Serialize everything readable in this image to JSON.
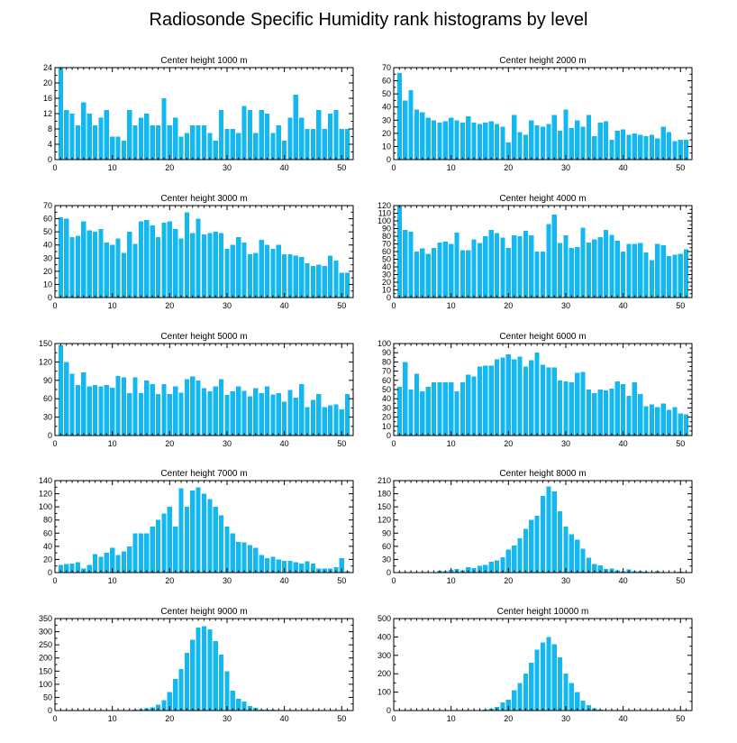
{
  "page": {
    "title": "Radiosonde Specific Humidity rank histograms by level"
  },
  "colors": {
    "bar": "#12b8ef",
    "background": "#ffffff",
    "axis": "#000000"
  },
  "chart_data": [
    {
      "type": "bar",
      "title": "Center height 1000 m",
      "xlim": [
        0,
        52
      ],
      "ylim": [
        0,
        24
      ],
      "xticks": [
        0,
        10,
        20,
        30,
        40,
        50
      ],
      "yticks": [
        0,
        4,
        8,
        12,
        16,
        20,
        24
      ],
      "x": [
        1,
        2,
        3,
        4,
        5,
        6,
        7,
        8,
        9,
        10,
        11,
        12,
        13,
        14,
        15,
        16,
        17,
        18,
        19,
        20,
        21,
        22,
        23,
        24,
        25,
        26,
        27,
        28,
        29,
        30,
        31,
        32,
        33,
        34,
        35,
        36,
        37,
        38,
        39,
        40,
        41,
        42,
        43,
        44,
        45,
        46,
        47,
        48,
        49,
        50,
        51
      ],
      "values": [
        24,
        13,
        12,
        9,
        15,
        12,
        9,
        11,
        13,
        6,
        6,
        5,
        13,
        9,
        11,
        12,
        9,
        9,
        16,
        9,
        11,
        6,
        7,
        9,
        9,
        9,
        7,
        5,
        13,
        8,
        8,
        7,
        14,
        13,
        7,
        13,
        12,
        7,
        9,
        5,
        11,
        17,
        11,
        8,
        8,
        13,
        8,
        12,
        13,
        8,
        8
      ]
    },
    {
      "type": "bar",
      "title": "Center height 2000 m",
      "xlim": [
        0,
        52
      ],
      "ylim": [
        0,
        70
      ],
      "xticks": [
        0,
        10,
        20,
        30,
        40,
        50
      ],
      "yticks": [
        0,
        10,
        20,
        30,
        40,
        50,
        60,
        70
      ],
      "x": [
        1,
        2,
        3,
        4,
        5,
        6,
        7,
        8,
        9,
        10,
        11,
        12,
        13,
        14,
        15,
        16,
        17,
        18,
        19,
        20,
        21,
        22,
        23,
        24,
        25,
        26,
        27,
        28,
        29,
        30,
        31,
        32,
        33,
        34,
        35,
        36,
        37,
        38,
        39,
        40,
        41,
        42,
        43,
        44,
        45,
        46,
        47,
        48,
        49,
        50,
        51
      ],
      "values": [
        66,
        45,
        53,
        38,
        36,
        32,
        30,
        28,
        29,
        32,
        30,
        28,
        33,
        28,
        27,
        28,
        29,
        27,
        25,
        13,
        34,
        21,
        19,
        30,
        26,
        25,
        27,
        34,
        22,
        38,
        24,
        30,
        25,
        34,
        18,
        28,
        29,
        15,
        22,
        23,
        19,
        20,
        19,
        18,
        19,
        16,
        25,
        21,
        14,
        15,
        15
      ]
    },
    {
      "type": "bar",
      "title": "Center height 3000 m",
      "xlim": [
        0,
        52
      ],
      "ylim": [
        0,
        70
      ],
      "xticks": [
        0,
        10,
        20,
        30,
        40,
        50
      ],
      "yticks": [
        0,
        10,
        20,
        30,
        40,
        50,
        60,
        70
      ],
      "x": [
        1,
        2,
        3,
        4,
        5,
        6,
        7,
        8,
        9,
        10,
        11,
        12,
        13,
        14,
        15,
        16,
        17,
        18,
        19,
        20,
        21,
        22,
        23,
        24,
        25,
        26,
        27,
        28,
        29,
        30,
        31,
        32,
        33,
        34,
        35,
        36,
        37,
        38,
        39,
        40,
        41,
        42,
        43,
        44,
        45,
        46,
        47,
        48,
        49,
        50,
        51
      ],
      "values": [
        61,
        60,
        46,
        47,
        58,
        51,
        50,
        52,
        42,
        40,
        45,
        34,
        50,
        41,
        58,
        59,
        55,
        46,
        57,
        58,
        52,
        45,
        65,
        49,
        60,
        48,
        49,
        50,
        49,
        37,
        40,
        46,
        42,
        33,
        34,
        44,
        40,
        37,
        40,
        33,
        33,
        32,
        31,
        26,
        24,
        25,
        24,
        32,
        28,
        19,
        19
      ]
    },
    {
      "type": "bar",
      "title": "Center height 4000 m",
      "xlim": [
        0,
        52
      ],
      "ylim": [
        0,
        120
      ],
      "xticks": [
        0,
        10,
        20,
        30,
        40,
        50
      ],
      "yticks": [
        0,
        10,
        20,
        30,
        40,
        50,
        60,
        70,
        80,
        90,
        100,
        110,
        120
      ],
      "x": [
        1,
        2,
        3,
        4,
        5,
        6,
        7,
        8,
        9,
        10,
        11,
        12,
        13,
        14,
        15,
        16,
        17,
        18,
        19,
        20,
        21,
        22,
        23,
        24,
        25,
        26,
        27,
        28,
        29,
        30,
        31,
        32,
        33,
        34,
        35,
        36,
        37,
        38,
        39,
        40,
        41,
        42,
        43,
        44,
        45,
        46,
        47,
        48,
        49,
        50,
        51
      ],
      "values": [
        120,
        88,
        86,
        60,
        64,
        57,
        65,
        72,
        73,
        70,
        85,
        62,
        62,
        76,
        71,
        80,
        88,
        84,
        78,
        65,
        81,
        80,
        87,
        81,
        60,
        60,
        96,
        108,
        71,
        81,
        65,
        66,
        91,
        72,
        76,
        79,
        88,
        82,
        74,
        60,
        70,
        70,
        71,
        59,
        49,
        70,
        68,
        54,
        56,
        57,
        63
      ]
    },
    {
      "type": "bar",
      "title": "Center height 5000 m",
      "xlim": [
        0,
        52
      ],
      "ylim": [
        0,
        150
      ],
      "xticks": [
        0,
        10,
        20,
        30,
        40,
        50
      ],
      "yticks": [
        0,
        30,
        60,
        90,
        120,
        150
      ],
      "x": [
        1,
        2,
        3,
        4,
        5,
        6,
        7,
        8,
        9,
        10,
        11,
        12,
        13,
        14,
        15,
        16,
        17,
        18,
        19,
        20,
        21,
        22,
        23,
        24,
        25,
        26,
        27,
        28,
        29,
        30,
        31,
        32,
        33,
        34,
        35,
        36,
        37,
        38,
        39,
        40,
        41,
        42,
        43,
        44,
        45,
        46,
        47,
        48,
        49,
        50,
        51
      ],
      "values": [
        147,
        120,
        101,
        82,
        103,
        80,
        82,
        80,
        82,
        78,
        97,
        95,
        69,
        95,
        69,
        90,
        84,
        68,
        84,
        68,
        80,
        70,
        92,
        96,
        90,
        77,
        72,
        80,
        92,
        66,
        72,
        80,
        73,
        64,
        77,
        69,
        80,
        67,
        69,
        55,
        74,
        62,
        84,
        46,
        58,
        68,
        46,
        49,
        51,
        43,
        68
      ]
    },
    {
      "type": "bar",
      "title": "Center height 6000 m",
      "xlim": [
        0,
        52
      ],
      "ylim": [
        0,
        100
      ],
      "xticks": [
        0,
        10,
        20,
        30,
        40,
        50
      ],
      "yticks": [
        0,
        10,
        20,
        30,
        40,
        50,
        60,
        70,
        80,
        90,
        100
      ],
      "x": [
        1,
        2,
        3,
        4,
        5,
        6,
        7,
        8,
        9,
        10,
        11,
        12,
        13,
        14,
        15,
        16,
        17,
        18,
        19,
        20,
        21,
        22,
        23,
        24,
        25,
        26,
        27,
        28,
        29,
        30,
        31,
        32,
        33,
        34,
        35,
        36,
        37,
        38,
        39,
        40,
        41,
        42,
        43,
        44,
        45,
        46,
        47,
        48,
        49,
        50,
        51
      ],
      "values": [
        53,
        80,
        50,
        67,
        48,
        53,
        58,
        58,
        58,
        58,
        48,
        58,
        66,
        64,
        75,
        76,
        76,
        83,
        85,
        88,
        83,
        86,
        75,
        82,
        90,
        77,
        74,
        74,
        60,
        59,
        58,
        68,
        69,
        50,
        46,
        50,
        49,
        51,
        59,
        56,
        43,
        58,
        45,
        32,
        34,
        31,
        35,
        28,
        31,
        24,
        23
      ]
    },
    {
      "type": "bar",
      "title": "Center height 7000 m",
      "xlim": [
        0,
        52
      ],
      "ylim": [
        0,
        140
      ],
      "xticks": [
        0,
        10,
        20,
        30,
        40,
        50
      ],
      "yticks": [
        0,
        20,
        40,
        60,
        80,
        100,
        120,
        140
      ],
      "x": [
        1,
        2,
        3,
        4,
        5,
        6,
        7,
        8,
        9,
        10,
        11,
        12,
        13,
        14,
        15,
        16,
        17,
        18,
        19,
        20,
        21,
        22,
        23,
        24,
        25,
        26,
        27,
        28,
        29,
        30,
        31,
        32,
        33,
        34,
        35,
        36,
        37,
        38,
        39,
        40,
        41,
        42,
        43,
        44,
        45,
        46,
        47,
        48,
        49,
        50,
        51
      ],
      "values": [
        12,
        13,
        14,
        16,
        6,
        12,
        28,
        24,
        30,
        38,
        27,
        32,
        40,
        60,
        60,
        60,
        70,
        80,
        90,
        100,
        70,
        128,
        100,
        125,
        130,
        120,
        112,
        100,
        87,
        70,
        60,
        47,
        46,
        42,
        38,
        27,
        22,
        24,
        20,
        18,
        18,
        16,
        14,
        17,
        14,
        6,
        6,
        6,
        8,
        22,
        2
      ]
    },
    {
      "type": "bar",
      "title": "Center height 8000 m",
      "xlim": [
        0,
        52
      ],
      "ylim": [
        0,
        210
      ],
      "xticks": [
        0,
        10,
        20,
        30,
        40,
        50
      ],
      "yticks": [
        0,
        30,
        60,
        90,
        120,
        150,
        180,
        210
      ],
      "x": [
        1,
        2,
        3,
        4,
        5,
        6,
        7,
        8,
        9,
        10,
        11,
        12,
        13,
        14,
        15,
        16,
        17,
        18,
        19,
        20,
        21,
        22,
        23,
        24,
        25,
        26,
        27,
        28,
        29,
        30,
        31,
        32,
        33,
        34,
        35,
        36,
        37,
        38,
        39,
        40,
        41,
        42,
        43,
        44,
        45,
        46,
        47,
        48,
        49,
        50,
        51
      ],
      "values": [
        0,
        1,
        0,
        1,
        1,
        1,
        0,
        4,
        3,
        6,
        8,
        5,
        12,
        10,
        15,
        18,
        25,
        28,
        35,
        52,
        62,
        78,
        100,
        120,
        130,
        175,
        197,
        185,
        140,
        105,
        87,
        75,
        55,
        34,
        20,
        16,
        8,
        9,
        5,
        3,
        7,
        3,
        3,
        2,
        1,
        3,
        1,
        1,
        1,
        2,
        1
      ]
    },
    {
      "type": "bar",
      "title": "Center height 9000 m",
      "xlim": [
        0,
        52
      ],
      "ylim": [
        0,
        350
      ],
      "xticks": [
        0,
        10,
        20,
        30,
        40,
        50
      ],
      "yticks": [
        0,
        50,
        100,
        150,
        200,
        250,
        300,
        350
      ],
      "x": [
        1,
        2,
        3,
        4,
        5,
        6,
        7,
        8,
        9,
        10,
        11,
        12,
        13,
        14,
        15,
        16,
        17,
        18,
        19,
        20,
        21,
        22,
        23,
        24,
        25,
        26,
        27,
        28,
        29,
        30,
        31,
        32,
        33,
        34,
        35,
        36,
        37,
        38,
        39,
        40,
        41,
        42,
        43,
        44,
        45,
        46,
        47,
        48,
        49,
        50,
        51
      ],
      "values": [
        0,
        0,
        0,
        0,
        0,
        0,
        0,
        1,
        0,
        1,
        1,
        2,
        2,
        3,
        5,
        8,
        12,
        22,
        40,
        70,
        120,
        158,
        220,
        270,
        315,
        320,
        308,
        265,
        212,
        150,
        75,
        45,
        35,
        18,
        10,
        4,
        3,
        3,
        2,
        1,
        1,
        1,
        0,
        2,
        0,
        1,
        1,
        0,
        0,
        0,
        0
      ]
    },
    {
      "type": "bar",
      "title": "Center height 10000 m",
      "xlim": [
        0,
        52
      ],
      "ylim": [
        0,
        500
      ],
      "xticks": [
        0,
        10,
        20,
        30,
        40,
        50
      ],
      "yticks": [
        0,
        100,
        200,
        300,
        400,
        500
      ],
      "x": [
        1,
        2,
        3,
        4,
        5,
        6,
        7,
        8,
        9,
        10,
        11,
        12,
        13,
        14,
        15,
        16,
        17,
        18,
        19,
        20,
        21,
        22,
        23,
        24,
        25,
        26,
        27,
        28,
        29,
        30,
        31,
        32,
        33,
        34,
        35,
        36,
        37,
        38,
        39,
        40,
        41,
        42,
        43,
        44,
        45,
        46,
        47,
        48,
        49,
        50,
        51
      ],
      "values": [
        0,
        0,
        0,
        0,
        0,
        0,
        0,
        0,
        0,
        0,
        1,
        1,
        1,
        2,
        3,
        5,
        10,
        20,
        45,
        60,
        110,
        150,
        200,
        260,
        330,
        370,
        400,
        360,
        290,
        200,
        150,
        100,
        55,
        30,
        12,
        5,
        3,
        2,
        1,
        1,
        0,
        0,
        0,
        1,
        0,
        0,
        0,
        0,
        1,
        0,
        0
      ]
    }
  ]
}
